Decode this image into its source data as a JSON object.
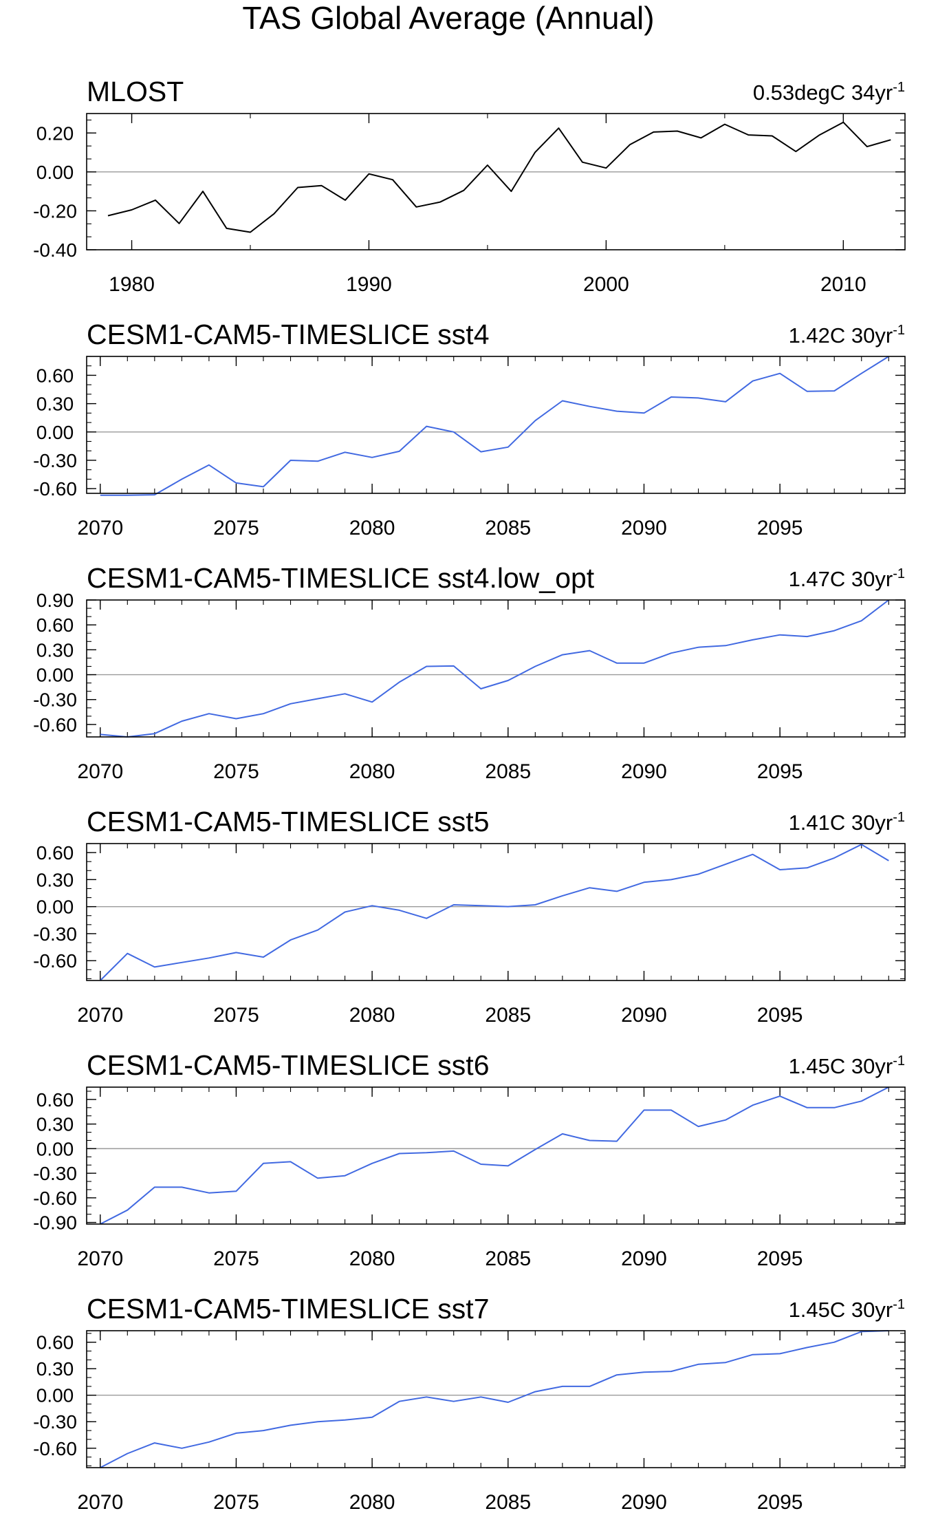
{
  "figure_title": "TAS Global Average (Annual)",
  "colors": {
    "observed": "#000000",
    "model": "#4169E1",
    "zero_line": "#9a9a9a"
  },
  "chart_data": [
    {
      "type": "line",
      "title": "MLOST",
      "trend": {
        "value": "0.53degC 34yr",
        "exponent": "-1"
      },
      "ylim": [
        -0.4,
        0.3
      ],
      "yticks": [
        "0.20",
        "0.00",
        "-0.20",
        "-0.40"
      ],
      "ytick_values": [
        0.2,
        0.0,
        -0.2,
        -0.4
      ],
      "xlim": [
        1978.1,
        2012.6
      ],
      "xticks": [
        "1980",
        "1990",
        "2000",
        "2010"
      ],
      "xtick_values": [
        1980,
        1990,
        2000,
        2010
      ],
      "minor_x": 5,
      "series": [
        {
          "name": "MLOST",
          "color": "#000000",
          "x": [
            1979,
            1980,
            1981,
            1982,
            1983,
            1984,
            1985,
            1986,
            1987,
            1988,
            1989,
            1990,
            1991,
            1992,
            1993,
            1994,
            1995,
            1996,
            1997,
            1998,
            1999,
            2000,
            2001,
            2002,
            2003,
            2004,
            2005,
            2006,
            2007,
            2008,
            2009,
            2010,
            2011,
            2012
          ],
          "values": [
            -0.225,
            -0.195,
            -0.145,
            -0.265,
            -0.1,
            -0.29,
            -0.31,
            -0.215,
            -0.08,
            -0.07,
            -0.145,
            -0.01,
            -0.04,
            -0.18,
            -0.155,
            -0.095,
            0.035,
            -0.1,
            0.1,
            0.225,
            0.05,
            0.02,
            0.14,
            0.205,
            0.21,
            0.175,
            0.245,
            0.19,
            0.185,
            0.105,
            0.19,
            0.255,
            0.13,
            0.165
          ]
        }
      ]
    },
    {
      "type": "line",
      "title": "CESM1-CAM5-TIMESLICE sst4",
      "trend": {
        "value": "1.42C 30yr",
        "exponent": "-1"
      },
      "ylim": [
        -0.65,
        0.8
      ],
      "yticks": [
        "0.60",
        "0.30",
        "0.00",
        "-0.30",
        "-0.60"
      ],
      "ytick_values": [
        0.6,
        0.3,
        0.0,
        -0.3,
        -0.6
      ],
      "xlim": [
        2069.5,
        2099.6
      ],
      "xticks": [
        "2070",
        "2075",
        "2080",
        "2085",
        "2090",
        "2095"
      ],
      "xtick_values": [
        2070,
        2075,
        2080,
        2085,
        2090,
        2095
      ],
      "minor_x": 1,
      "series": [
        {
          "name": "sst4",
          "color": "#4169E1",
          "x": [
            2070,
            2071,
            2072,
            2073,
            2074,
            2075,
            2076,
            2077,
            2078,
            2079,
            2080,
            2081,
            2082,
            2083,
            2084,
            2085,
            2086,
            2087,
            2088,
            2089,
            2090,
            2091,
            2092,
            2093,
            2094,
            2095,
            2096,
            2097,
            2098,
            2099
          ],
          "values": [
            -0.67,
            -0.67,
            -0.665,
            -0.5,
            -0.35,
            -0.54,
            -0.58,
            -0.3,
            -0.31,
            -0.215,
            -0.27,
            -0.205,
            0.06,
            0.0,
            -0.21,
            -0.16,
            0.12,
            0.33,
            0.27,
            0.22,
            0.2,
            0.37,
            0.36,
            0.32,
            0.54,
            0.62,
            0.43,
            0.435,
            0.62,
            0.8
          ]
        }
      ]
    },
    {
      "type": "line",
      "title": "CESM1-CAM5-TIMESLICE sst4.low_opt",
      "trend": {
        "value": "1.47C 30yr",
        "exponent": "-1"
      },
      "ylim": [
        -0.75,
        0.9
      ],
      "yticks": [
        "0.90",
        "0.60",
        "0.30",
        "0.00",
        "-0.30",
        "-0.60"
      ],
      "ytick_values": [
        0.9,
        0.6,
        0.3,
        0.0,
        -0.3,
        -0.6
      ],
      "xlim": [
        2069.5,
        2099.6
      ],
      "xticks": [
        "2070",
        "2075",
        "2080",
        "2085",
        "2090",
        "2095"
      ],
      "xtick_values": [
        2070,
        2075,
        2080,
        2085,
        2090,
        2095
      ],
      "minor_x": 1,
      "series": [
        {
          "name": "sst4.low_opt",
          "color": "#4169E1",
          "x": [
            2070,
            2071,
            2072,
            2073,
            2074,
            2075,
            2076,
            2077,
            2078,
            2079,
            2080,
            2081,
            2082,
            2083,
            2084,
            2085,
            2086,
            2087,
            2088,
            2089,
            2090,
            2091,
            2092,
            2093,
            2094,
            2095,
            2096,
            2097,
            2098,
            2099
          ],
          "values": [
            -0.72,
            -0.75,
            -0.71,
            -0.56,
            -0.47,
            -0.53,
            -0.47,
            -0.35,
            -0.29,
            -0.23,
            -0.33,
            -0.09,
            0.1,
            0.105,
            -0.17,
            -0.07,
            0.1,
            0.24,
            0.29,
            0.14,
            0.14,
            0.26,
            0.33,
            0.35,
            0.42,
            0.48,
            0.46,
            0.53,
            0.65,
            0.9
          ]
        }
      ]
    },
    {
      "type": "line",
      "title": "CESM1-CAM5-TIMESLICE sst5",
      "trend": {
        "value": "1.41C 30yr",
        "exponent": "-1"
      },
      "ylim": [
        -0.82,
        0.7
      ],
      "yticks": [
        "0.60",
        "0.30",
        "0.00",
        "-0.30",
        "-0.60"
      ],
      "ytick_values": [
        0.6,
        0.3,
        0.0,
        -0.3,
        -0.6
      ],
      "xlim": [
        2069.5,
        2099.6
      ],
      "xticks": [
        "2070",
        "2075",
        "2080",
        "2085",
        "2090",
        "2095"
      ],
      "xtick_values": [
        2070,
        2075,
        2080,
        2085,
        2090,
        2095
      ],
      "minor_x": 1,
      "series": [
        {
          "name": "sst5",
          "color": "#4169E1",
          "x": [
            2070,
            2071,
            2072,
            2073,
            2074,
            2075,
            2076,
            2077,
            2078,
            2079,
            2080,
            2081,
            2082,
            2083,
            2084,
            2085,
            2086,
            2087,
            2088,
            2089,
            2090,
            2091,
            2092,
            2093,
            2094,
            2095,
            2096,
            2097,
            2098,
            2099
          ],
          "values": [
            -0.82,
            -0.52,
            -0.67,
            -0.62,
            -0.57,
            -0.51,
            -0.56,
            -0.37,
            -0.26,
            -0.06,
            0.01,
            -0.04,
            -0.13,
            0.02,
            0.01,
            0.0,
            0.02,
            0.12,
            0.21,
            0.17,
            0.27,
            0.3,
            0.36,
            0.47,
            0.58,
            0.41,
            0.43,
            0.54,
            0.69,
            0.51
          ]
        }
      ]
    },
    {
      "type": "line",
      "title": "CESM1-CAM5-TIMESLICE sst6",
      "trend": {
        "value": "1.45C 30yr",
        "exponent": "-1"
      },
      "ylim": [
        -0.92,
        0.75
      ],
      "yticks": [
        "0.60",
        "0.30",
        "0.00",
        "-0.30",
        "-0.60",
        "-0.90"
      ],
      "ytick_values": [
        0.6,
        0.3,
        0.0,
        -0.3,
        -0.6,
        -0.9
      ],
      "xlim": [
        2069.5,
        2099.6
      ],
      "xticks": [
        "2070",
        "2075",
        "2080",
        "2085",
        "2090",
        "2095"
      ],
      "xtick_values": [
        2070,
        2075,
        2080,
        2085,
        2090,
        2095
      ],
      "minor_x": 1,
      "series": [
        {
          "name": "sst6",
          "color": "#4169E1",
          "x": [
            2070,
            2071,
            2072,
            2073,
            2074,
            2075,
            2076,
            2077,
            2078,
            2079,
            2080,
            2081,
            2082,
            2083,
            2084,
            2085,
            2086,
            2087,
            2088,
            2089,
            2090,
            2091,
            2092,
            2093,
            2094,
            2095,
            2096,
            2097,
            2098,
            2099
          ],
          "values": [
            -0.92,
            -0.75,
            -0.47,
            -0.47,
            -0.54,
            -0.52,
            -0.18,
            -0.16,
            -0.36,
            -0.33,
            -0.18,
            -0.06,
            -0.05,
            -0.03,
            -0.19,
            -0.21,
            -0.01,
            0.18,
            0.1,
            0.09,
            0.47,
            0.47,
            0.27,
            0.35,
            0.53,
            0.64,
            0.5,
            0.5,
            0.58,
            0.75
          ]
        }
      ]
    },
    {
      "type": "line",
      "title": "CESM1-CAM5-TIMESLICE sst7",
      "trend": {
        "value": "1.45C 30yr",
        "exponent": "-1"
      },
      "ylim": [
        -0.82,
        0.73
      ],
      "yticks": [
        "0.60",
        "0.30",
        "0.00",
        "-0.30",
        "-0.60"
      ],
      "ytick_values": [
        0.6,
        0.3,
        0.0,
        -0.3,
        -0.6
      ],
      "xlim": [
        2069.5,
        2099.6
      ],
      "xticks": [
        "2070",
        "2075",
        "2080",
        "2085",
        "2090",
        "2095"
      ],
      "xtick_values": [
        2070,
        2075,
        2080,
        2085,
        2090,
        2095
      ],
      "minor_x": 1,
      "series": [
        {
          "name": "sst7",
          "color": "#4169E1",
          "x": [
            2070,
            2071,
            2072,
            2073,
            2074,
            2075,
            2076,
            2077,
            2078,
            2079,
            2080,
            2081,
            2082,
            2083,
            2084,
            2085,
            2086,
            2087,
            2088,
            2089,
            2090,
            2091,
            2092,
            2093,
            2094,
            2095,
            2096,
            2097,
            2098,
            2099
          ],
          "values": [
            -0.82,
            -0.66,
            -0.54,
            -0.6,
            -0.53,
            -0.43,
            -0.4,
            -0.34,
            -0.3,
            -0.28,
            -0.25,
            -0.07,
            -0.02,
            -0.07,
            -0.02,
            -0.08,
            0.04,
            0.1,
            0.1,
            0.23,
            0.26,
            0.27,
            0.35,
            0.37,
            0.46,
            0.47,
            0.54,
            0.6,
            0.72,
            0.73
          ]
        }
      ]
    }
  ]
}
